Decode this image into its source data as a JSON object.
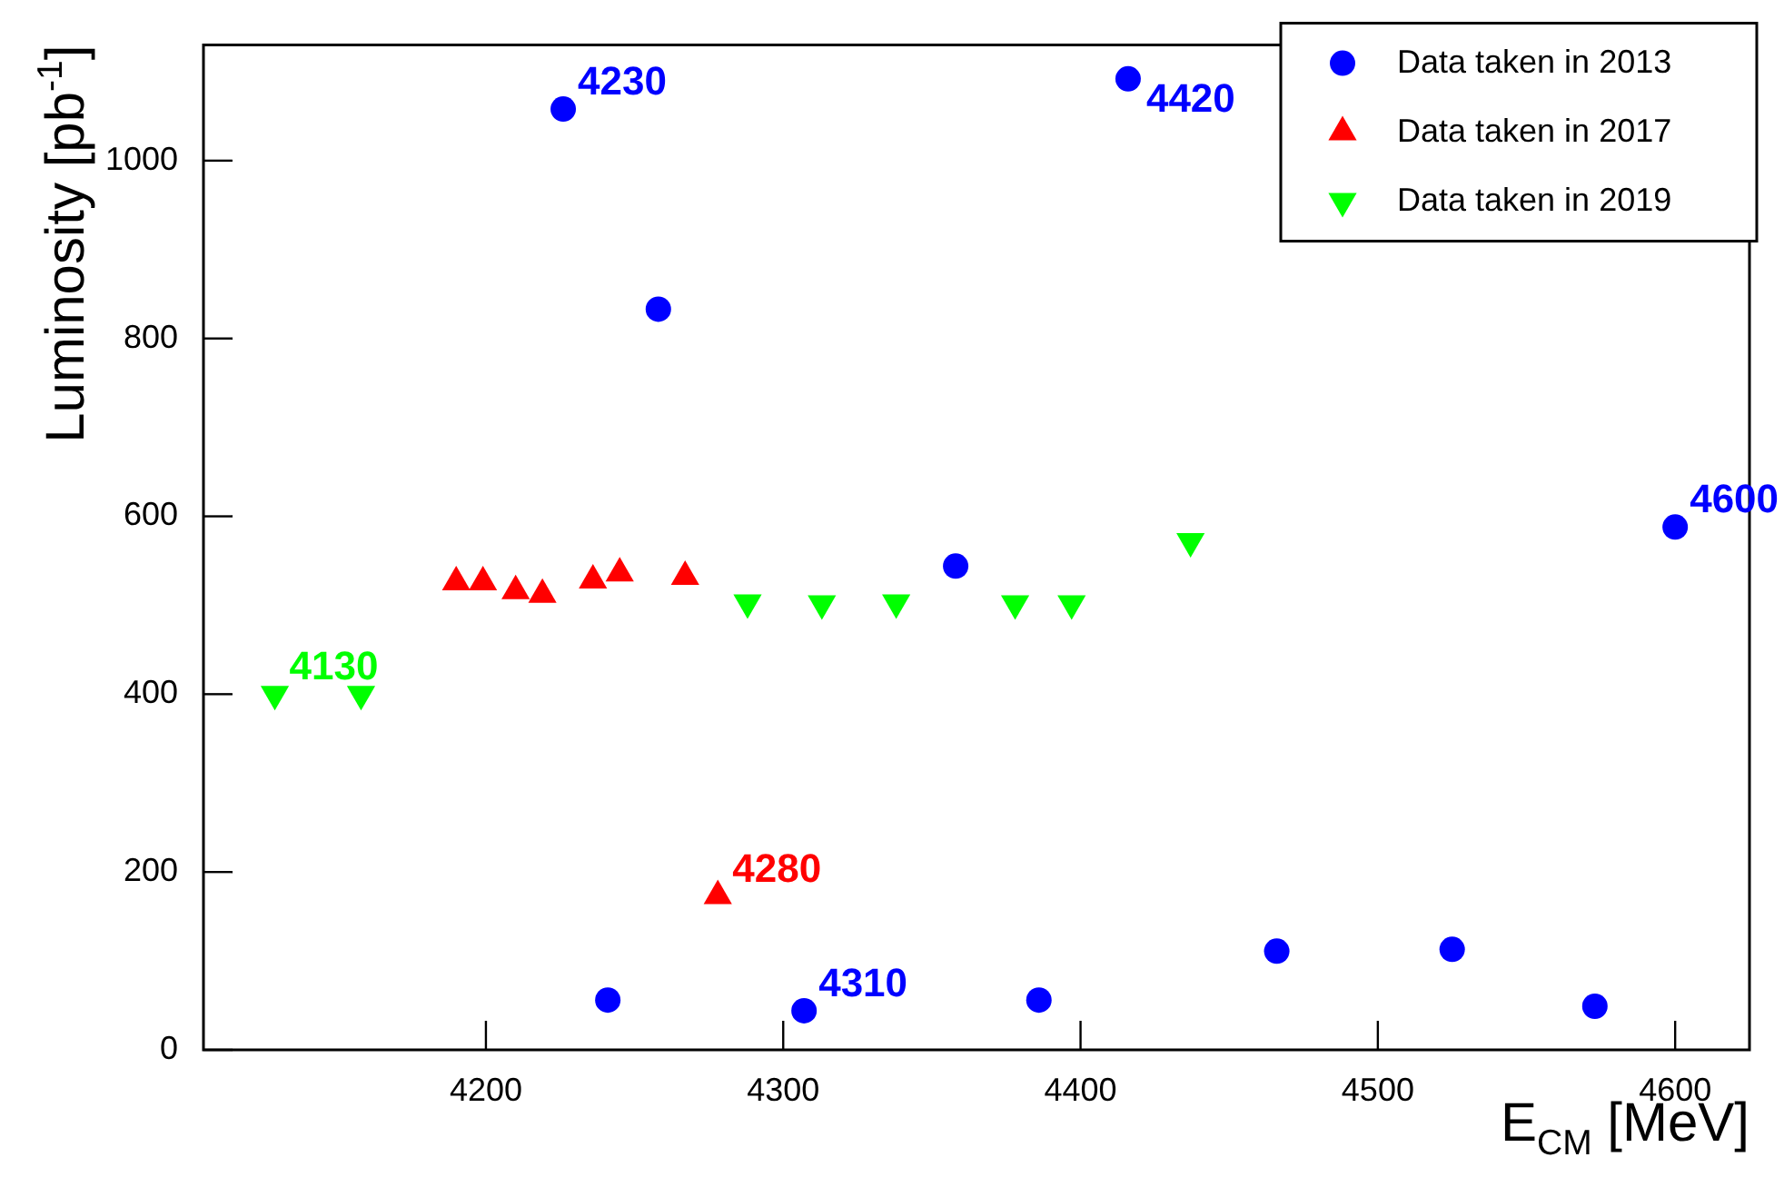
{
  "chart_data": {
    "type": "scatter",
    "xlabel": "E$_{CM}$ [MeV]",
    "ylabel": "Luminosity [pb$^{-1}$]",
    "xlim": [
      4105,
      4625
    ],
    "xticks": [
      4200,
      4300,
      4400,
      4500,
      4600
    ],
    "ylim": [
      0,
      1130
    ],
    "yticks": [
      0,
      200,
      400,
      600,
      800,
      1000
    ],
    "grid": false,
    "legend": "top right",
    "series": [
      {
        "name": "Data taken in 2013",
        "color": "#0000ff",
        "marker": "circle",
        "x": [
          4226,
          4241,
          4258,
          4307,
          4358,
          4386,
          4416,
          4466,
          4525,
          4573,
          4600
        ],
        "values": [
          1058,
          56,
          833,
          44,
          544,
          56,
          1092,
          111,
          113,
          49,
          588
        ]
      },
      {
        "name": "Data taken in 2017",
        "color": "#ff0000",
        "marker": "triangle",
        "x": [
          4190,
          4199,
          4210,
          4219,
          4236,
          4245,
          4267,
          4278
        ],
        "values": [
          526,
          526,
          516,
          512,
          528,
          536,
          532,
          173
        ]
      },
      {
        "name": "Data taken in 2019",
        "color": "#00ff00",
        "marker": "triangle",
        "x": [
          4129,
          4158,
          4288,
          4313,
          4338,
          4378,
          4397,
          4437
        ],
        "values": [
          400,
          400,
          503,
          502,
          503,
          502,
          502,
          572
        ]
      }
    ],
    "annotations": [
      {
        "text": "4230",
        "x": 4226,
        "y": 1058
      },
      {
        "text": "4420",
        "x": 4416,
        "y": 1092
      },
      {
        "text": "4600",
        "x": 4600,
        "y": 588
      },
      {
        "text": "4130",
        "x": 4129,
        "y": 400
      },
      {
        "text": "4280",
        "x": 4278,
        "y": 173
      },
      {
        "text": "4310",
        "x": 4307,
        "y": 44
      }
    ]
  }
}
